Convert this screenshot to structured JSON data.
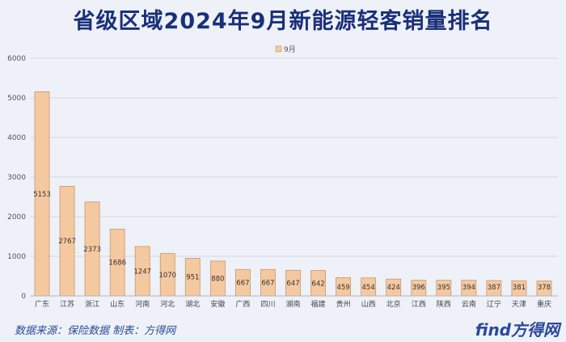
{
  "chart_data": {
    "type": "bar",
    "title": "省级区域2024年9月新能源轻客销量排名",
    "legend": {
      "position": "top-center",
      "label": "9月"
    },
    "series": [
      {
        "name": "9月",
        "color": "#f5c9a0",
        "stroke": "#c9956a"
      }
    ],
    "categories": [
      "广东",
      "江苏",
      "浙江",
      "山东",
      "河南",
      "河北",
      "湖北",
      "安徽",
      "广西",
      "四川",
      "湖南",
      "福建",
      "贵州",
      "山西",
      "北京",
      "江西",
      "陕西",
      "云南",
      "辽宁",
      "天津",
      "重庆"
    ],
    "values": [
      5153,
      2767,
      2373,
      1686,
      1247,
      1070,
      951,
      880,
      667,
      667,
      647,
      642,
      459,
      454,
      424,
      396,
      395,
      394,
      387,
      381,
      378
    ],
    "ylim": [
      0,
      6000
    ],
    "yticks": [
      0,
      1000,
      2000,
      3000,
      4000,
      5000,
      6000
    ],
    "grid": true
  },
  "footer": {
    "source": "数据来源：保险数据 制表：方得网",
    "logo": "find方得网"
  }
}
